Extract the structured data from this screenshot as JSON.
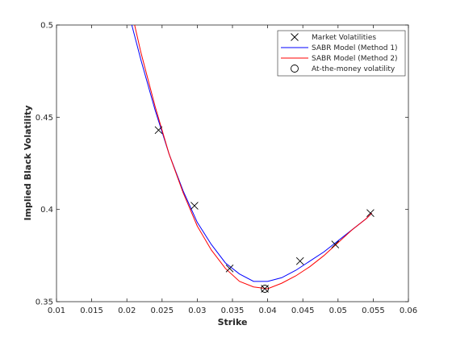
{
  "chart_data": {
    "type": "line",
    "title": "",
    "xlabel": "Strike",
    "ylabel": "Implied Black Volatility",
    "xlim": [
      0.01,
      0.06
    ],
    "ylim": [
      0.35,
      0.5
    ],
    "xticks": [
      0.01,
      0.015,
      0.02,
      0.025,
      0.03,
      0.035,
      0.04,
      0.045,
      0.05,
      0.055,
      0.06
    ],
    "xtick_labels": [
      "0.01",
      "0.015",
      "0.02",
      "0.025",
      "0.03",
      "0.035",
      "0.04",
      "0.045",
      "0.05",
      "0.055",
      "0.06"
    ],
    "yticks": [
      0.35,
      0.4,
      0.45,
      0.5
    ],
    "ytick_labels": [
      "0.35",
      "0.4",
      "0.45",
      "0.5"
    ],
    "grid": false,
    "legend_position": "top-right",
    "series": [
      {
        "name": "Market Volatilities",
        "kind": "scatter",
        "marker": "x",
        "color": "#000000",
        "x": [
          0.0245,
          0.0296,
          0.0346,
          0.0396,
          0.0446,
          0.0496,
          0.0546
        ],
        "y": [
          0.443,
          0.402,
          0.368,
          0.357,
          0.372,
          0.381,
          0.398
        ]
      },
      {
        "name": "SABR Model (Method 1)",
        "kind": "line",
        "color": "#0000ff",
        "x": [
          0.0207,
          0.022,
          0.024,
          0.026,
          0.028,
          0.03,
          0.032,
          0.034,
          0.036,
          0.038,
          0.04,
          0.042,
          0.044,
          0.046,
          0.048,
          0.05,
          0.052,
          0.054,
          0.0548
        ],
        "y": [
          0.5,
          0.481,
          0.454,
          0.43,
          0.41,
          0.393,
          0.381,
          0.371,
          0.365,
          0.361,
          0.361,
          0.363,
          0.367,
          0.372,
          0.377,
          0.383,
          0.389,
          0.395,
          0.398
        ]
      },
      {
        "name": "SABR Model (Method 2)",
        "kind": "line",
        "color": "#ff0000",
        "x": [
          0.0211,
          0.022,
          0.024,
          0.026,
          0.028,
          0.03,
          0.032,
          0.034,
          0.036,
          0.038,
          0.04,
          0.042,
          0.044,
          0.046,
          0.048,
          0.05,
          0.052,
          0.054,
          0.0548
        ],
        "y": [
          0.5,
          0.485,
          0.456,
          0.43,
          0.409,
          0.391,
          0.378,
          0.368,
          0.361,
          0.358,
          0.357,
          0.36,
          0.364,
          0.369,
          0.375,
          0.382,
          0.389,
          0.395,
          0.398
        ]
      },
      {
        "name": "At-the-money volatility",
        "kind": "scatter",
        "marker": "o",
        "color": "#000000",
        "x": [
          0.0396
        ],
        "y": [
          0.357
        ]
      }
    ]
  }
}
